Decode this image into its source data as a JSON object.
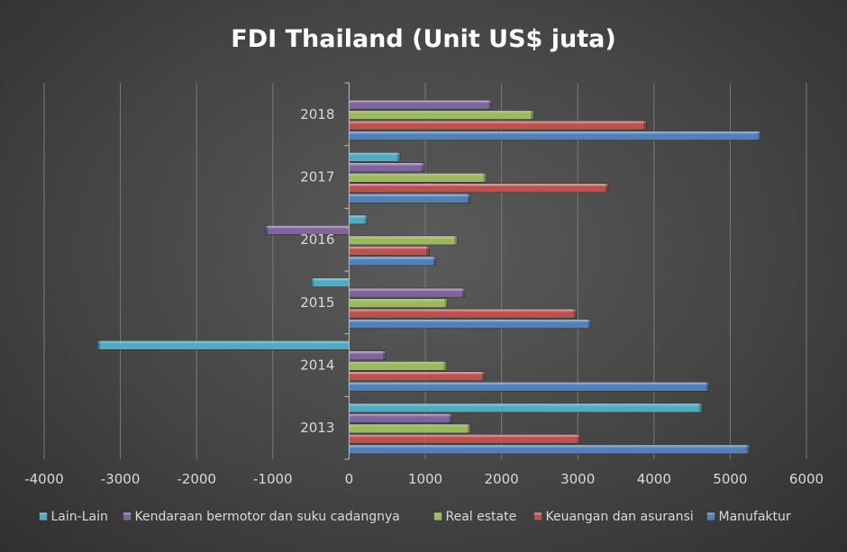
{
  "chart_data": {
    "type": "bar",
    "orientation": "horizontal",
    "title": "FDI Thailand (Unit US$ juta)",
    "xlabel": "",
    "ylabel": "",
    "categories": [
      "2013",
      "2014",
      "2015",
      "2016",
      "2017",
      "2018"
    ],
    "xlim": [
      -4000,
      6000
    ],
    "x_ticks": [
      "-4000",
      "-3000",
      "-2000",
      "-1000",
      "0",
      "1000",
      "2000",
      "3000",
      "4000",
      "5000",
      "6000"
    ],
    "grid": "vertical",
    "legend_position": "bottom",
    "series": [
      {
        "name": "Manufaktur",
        "color": "#4f81bd",
        "values": [
          5250,
          4720,
          3170,
          1140,
          1590,
          5400
        ]
      },
      {
        "name": "Keuangan dan asuransi",
        "color": "#c0504d",
        "values": [
          3030,
          1780,
          2980,
          1050,
          3400,
          3900
        ]
      },
      {
        "name": "Real estate",
        "color": "#9bbb59",
        "values": [
          1590,
          1280,
          1290,
          1420,
          1800,
          2420
        ]
      },
      {
        "name": "Kendaraan bermotor dan suku cadangnya",
        "color": "#8064a2",
        "values": [
          1350,
          480,
          1520,
          -1100,
          990,
          1870
        ]
      },
      {
        "name": "Lain-Lain",
        "color": "#4bacc6",
        "values": [
          4630,
          -3300,
          -500,
          240,
          670,
          0
        ]
      }
    ],
    "legend_order": [
      "Lain-Lain",
      "Kendaraan bermotor dan suku cadangnya",
      "Real estate",
      "Keuangan dan asuransi",
      "Manufaktur"
    ]
  }
}
